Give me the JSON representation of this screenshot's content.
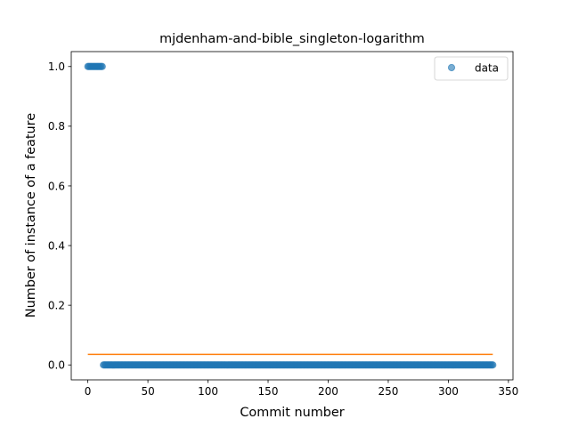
{
  "chart_data": {
    "type": "scatter",
    "title": "mjdenham-and-bible_singleton-logarithm",
    "xlabel": "Commit number",
    "ylabel": "Number of instance of a feature",
    "xlim": [
      -13.8,
      353.8
    ],
    "ylim": [
      -0.05,
      1.05
    ],
    "xticks": [
      0,
      50,
      100,
      150,
      200,
      250,
      300,
      350
    ],
    "yticks": [
      0.0,
      0.2,
      0.4,
      0.6,
      0.8,
      1.0
    ],
    "xtick_labels": [
      "0",
      "50",
      "100",
      "150",
      "200",
      "250",
      "300",
      "350"
    ],
    "ytick_labels": [
      "0.0",
      "0.2",
      "0.4",
      "0.6",
      "0.8",
      "1.0"
    ],
    "legend": {
      "position": "top-right",
      "entries": [
        "data"
      ]
    },
    "grid": false,
    "series": [
      {
        "name": "data",
        "kind": "scatter",
        "color": "#1f77b4",
        "x_start": 0,
        "x_end": 337,
        "segments": [
          {
            "x_from": 0,
            "x_to": 12,
            "y": 1.0
          },
          {
            "x_from": 13,
            "x_to": 337,
            "y": 0.0
          }
        ]
      },
      {
        "kind": "line",
        "color": "#ff7f0e",
        "x": [
          0,
          337
        ],
        "y": [
          0.0355,
          0.0355
        ]
      }
    ]
  }
}
